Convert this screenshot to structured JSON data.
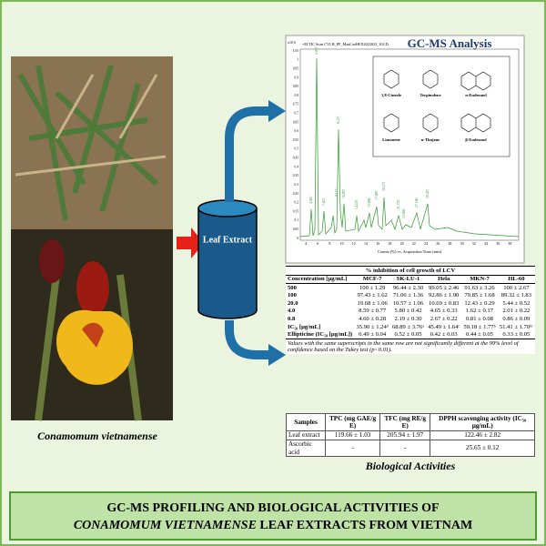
{
  "photo_caption": "Conamomum vietnamense",
  "extract_label": "Leaf Extract",
  "gcms": {
    "title": "GC-MS Analysis",
    "scale_label": "x10 6",
    "scan_label": "+EI TIC Scan CVLH_PP_MauCaoHEX2022023_102.D",
    "x_axis_label": "Counts (%) vs. Acquisition Time (min)",
    "y_tick_labels": [
      "1.05",
      "1",
      "0.95",
      "0.9",
      "0.85",
      "0.8",
      "0.75",
      "0.7",
      "0.65",
      "0.6",
      "0.55",
      "0.5",
      "0.45",
      "0.4",
      "0.35",
      "0.3",
      "0.25",
      "0.2",
      "0.15",
      "0.1",
      "0.05",
      "0"
    ],
    "x_tick_labels": [
      "4",
      "6",
      "8",
      "10",
      "12",
      "14",
      "16",
      "18",
      "20",
      "22",
      "24",
      "26",
      "28",
      "30",
      "32",
      "34",
      "36",
      "38"
    ],
    "peak_labels": [
      "4.067",
      "5.837",
      "7.821",
      "9.177",
      "9.227",
      "10.857",
      "14.187",
      "15.898",
      "17.887",
      "20.273",
      "21.725",
      "23.066",
      "27.186",
      "29.427"
    ],
    "compounds": [
      "1,8-Cineole",
      "Terpinolene",
      "α-Eudesmol",
      "Limonene",
      "α-Thujene",
      "β-Eudesmol"
    ]
  },
  "table1": {
    "caption": "% inhibition of cell growth of LCV",
    "header": [
      "Concentration [µg/mL]",
      "MCF-7",
      "SK-LU-1",
      "Hela",
      "MKN-7",
      "HL-60"
    ],
    "rows": [
      [
        "500",
        "100 ± 1.29",
        "96.44 ± 2.30",
        "99.05 ± 2.46",
        "91.63 ± 3.26",
        "100 ± 2.67"
      ],
      [
        "100",
        "97.43 ± 1.62",
        "71.06 ± 1.36",
        "92.86 ± 1.90",
        "79.85 ± 1.68",
        "89.32 ± 1.83"
      ],
      [
        "20.0",
        "19.68 ± 1.06",
        "10.57 ± 1.06",
        "10.69 ± 0.83",
        "12.43 ± 0.29",
        "5.44 ± 0.52"
      ],
      [
        "4.0",
        "8.59 ± 0.77",
        "5.80 ± 0.42",
        "4.65 ± 0.33",
        "1.62 ± 0.17",
        "2.01 ± 0.22"
      ],
      [
        "0.8",
        "4.60 ± 0.28",
        "2.19 ± 0.30",
        "2.67 ± 0.22",
        "0.81 ± 0.08",
        "0.86 ± 0.09"
      ],
      [
        "IC₅₀ [µg/mL]",
        "35.90 ± 1.24ᵈ",
        "68.89 ± 3.76ᵃ",
        "45.49 ± 1.64ᶜ",
        "59.18 ± 1.77ᵇ",
        "51.41 ± 1.70ᵇᶜ"
      ],
      [
        "Ellipticine (IC₅₀ [µg/mL])",
        "0.49 ± 0.04",
        "0.52 ± 0.05",
        "0.42 ± 0.03",
        "0.44 ± 0.05",
        "0.33 ± 0.05"
      ]
    ],
    "footnote": "Values with the same superscripts in the same row are not significantly different at the 99% level of confidence based on the Tukey test (p<0.01)."
  },
  "table2": {
    "header": [
      "Samples",
      "TPC (mg GAE/g E)",
      "TFC (mg RE/g E)",
      "DPPH scavenging activity (IC₅₀ µg/mL)"
    ],
    "rows": [
      [
        "Leaf extract",
        "119.66 ± 1.03",
        "205.94 ± 1.97",
        "122.46 ± 2.82"
      ],
      [
        "Ascorbic acid",
        "-",
        "-",
        "25.65 ± 0.12"
      ]
    ]
  },
  "bio_title": "Biological Activities",
  "title": {
    "line1": "GC-MS PROFILING AND BIOLOGICAL ACTIVITIES OF",
    "line2_italic": "CONAMOMUM VIETNAMENSE",
    "line2_rest": " LEAF EXTRACTS FROM VIETNAM"
  }
}
